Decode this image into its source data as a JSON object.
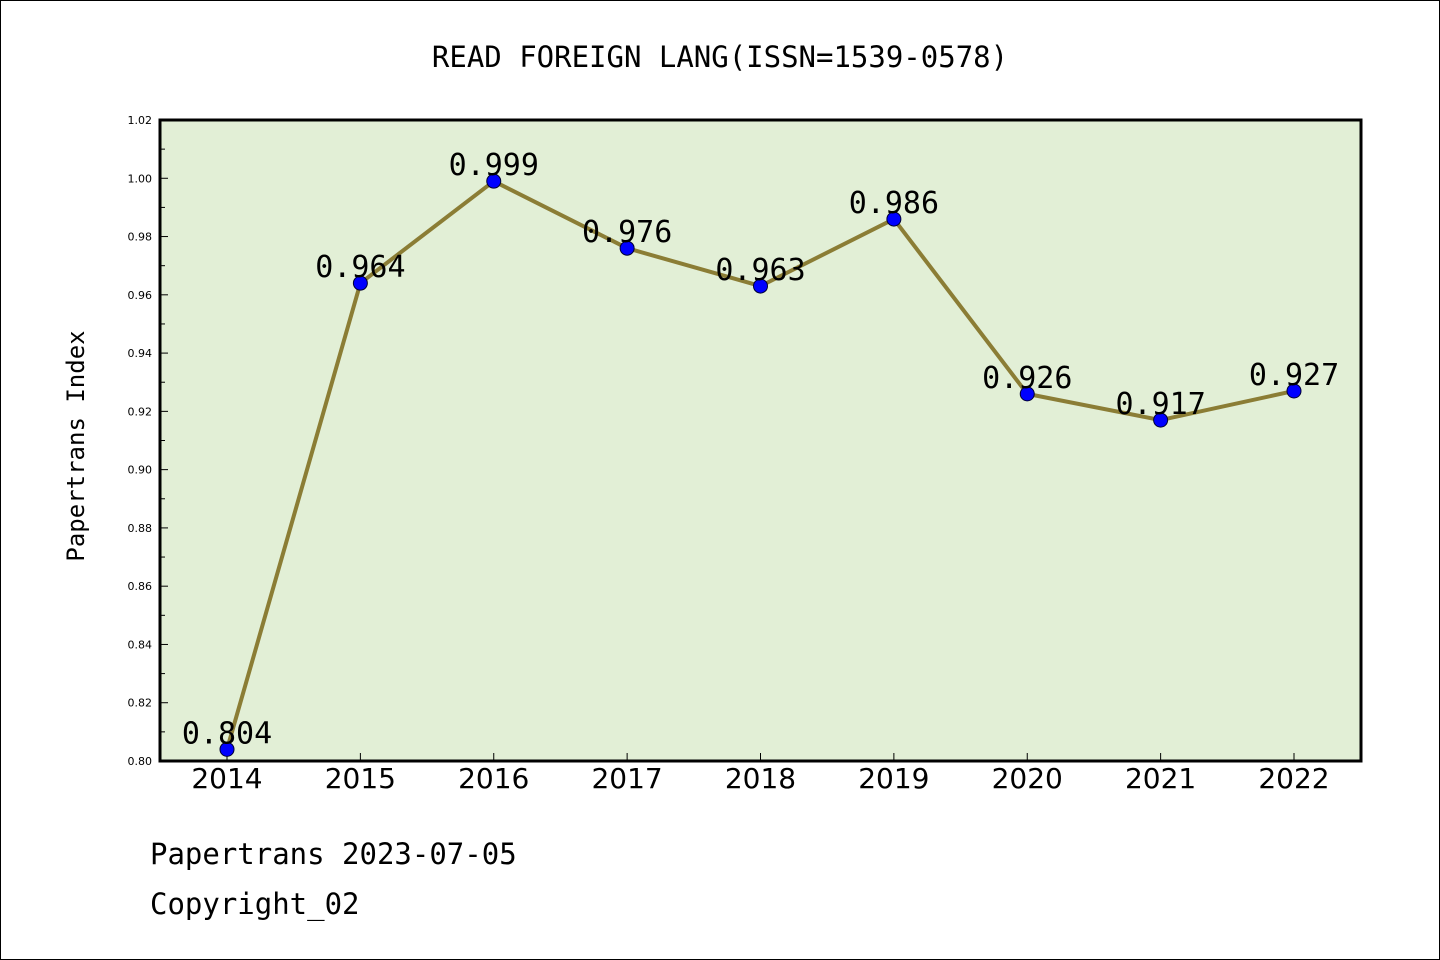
{
  "chart_data": {
    "type": "line",
    "title": "READ FOREIGN LANG(ISSN=1539-0578)",
    "ylabel": "Papertrans Index",
    "xlabel": "",
    "categories": [
      "2014",
      "2015",
      "2016",
      "2017",
      "2018",
      "2019",
      "2020",
      "2021",
      "2022"
    ],
    "series": [
      {
        "values": [
          0.804,
          0.964,
          0.999,
          0.976,
          0.963,
          0.986,
          0.926,
          0.917,
          0.927
        ]
      }
    ],
    "data_labels": [
      "0.804",
      "0.964",
      "0.999",
      "0.976",
      "0.963",
      "0.986",
      "0.926",
      "0.917",
      "0.927"
    ],
    "ylim": [
      0.8,
      1.02
    ],
    "yticks": [
      "0.80",
      "0.82",
      "0.84",
      "0.86",
      "0.88",
      "0.90",
      "0.92",
      "0.94",
      "0.96",
      "0.98",
      "1.00",
      "1.02"
    ],
    "grid": false,
    "colors": {
      "plot_background": "#e2efd6",
      "line": "#8b7d35",
      "marker": "#0000ff"
    }
  },
  "footer": {
    "line1": "Papertrans 2023-07-05",
    "line2": "Copyright_02"
  }
}
